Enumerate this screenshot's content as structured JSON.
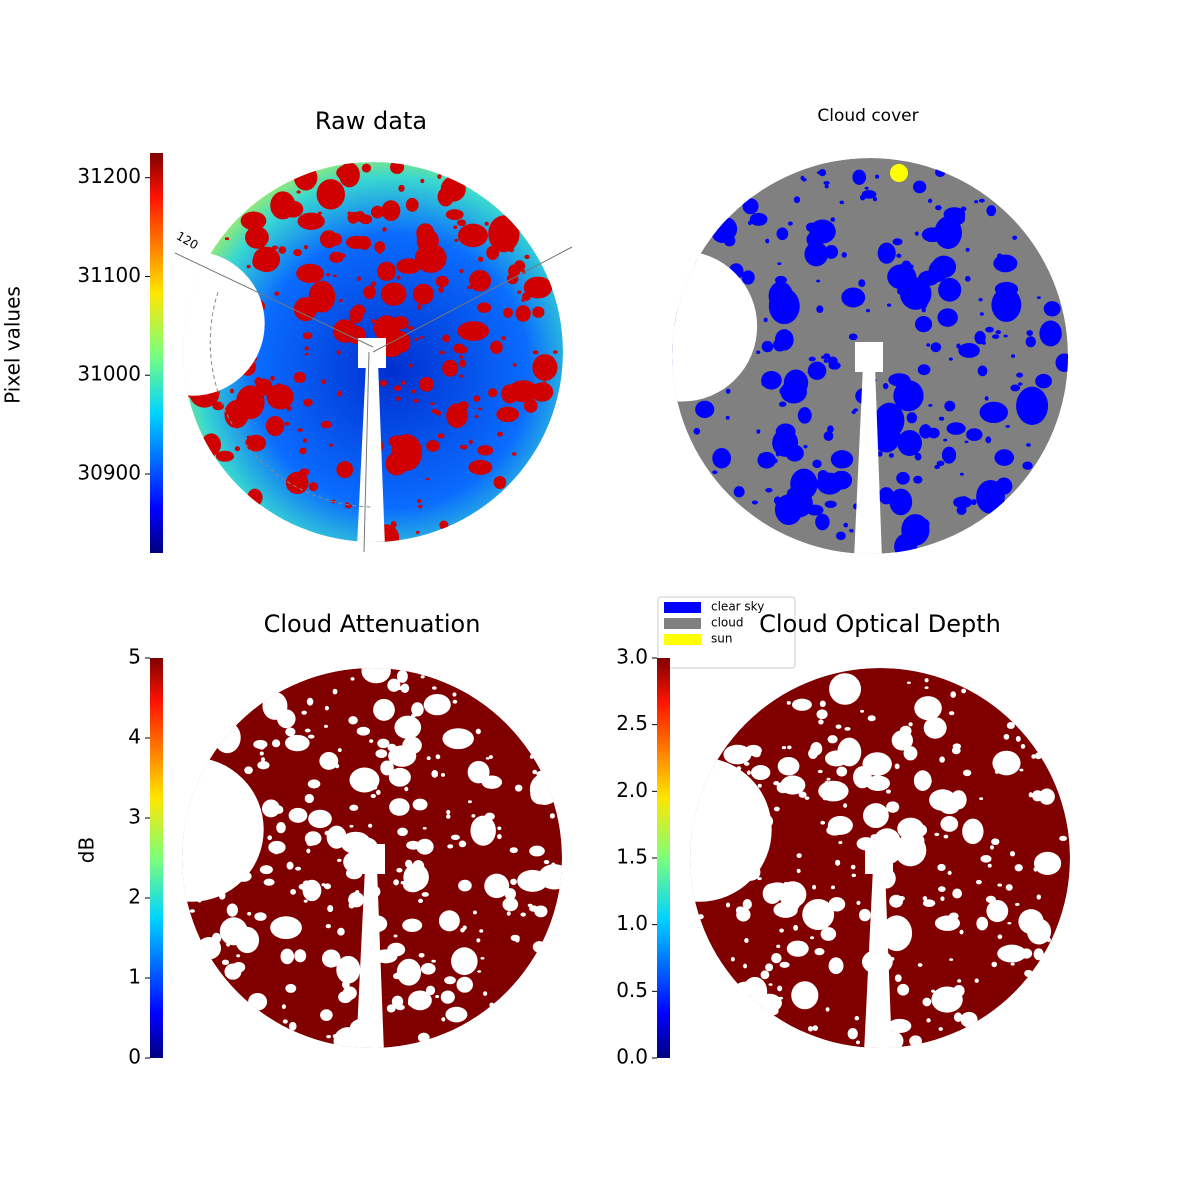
{
  "chart_data": [
    {
      "type": "image",
      "title": "Raw data",
      "colorbar": {
        "label": "Pixel values",
        "lim": [
          30820,
          31225
        ],
        "ticks": [
          30900,
          31000,
          31100,
          31200
        ],
        "cmap": "jet"
      },
      "annotations": [
        "120"
      ]
    },
    {
      "type": "image",
      "title": "Cloud cover",
      "legend": {
        "entries": [
          {
            "name": "clear sky",
            "color": "#0000ff"
          },
          {
            "name": "cloud",
            "color": "#808080"
          },
          {
            "name": "sun",
            "color": "#ffff00"
          }
        ]
      }
    },
    {
      "type": "image",
      "title": "Cloud Attenuation",
      "colorbar": {
        "label": "dB",
        "lim": [
          0,
          5
        ],
        "ticks": [
          0,
          1,
          2,
          3,
          4,
          5
        ],
        "cmap": "jet"
      }
    },
    {
      "type": "image",
      "title": "Cloud Optical Depth",
      "colorbar": {
        "lim": [
          0,
          3
        ],
        "ticks": [
          {
            "value": 0,
            "label": "0.0"
          },
          0.5,
          {
            "value": 1,
            "label": "1.0"
          },
          1.5,
          {
            "value": 2,
            "label": "2.0"
          },
          2.5,
          {
            "value": 3,
            "label": "3.0"
          }
        ],
        "cmap": "jet"
      }
    }
  ]
}
